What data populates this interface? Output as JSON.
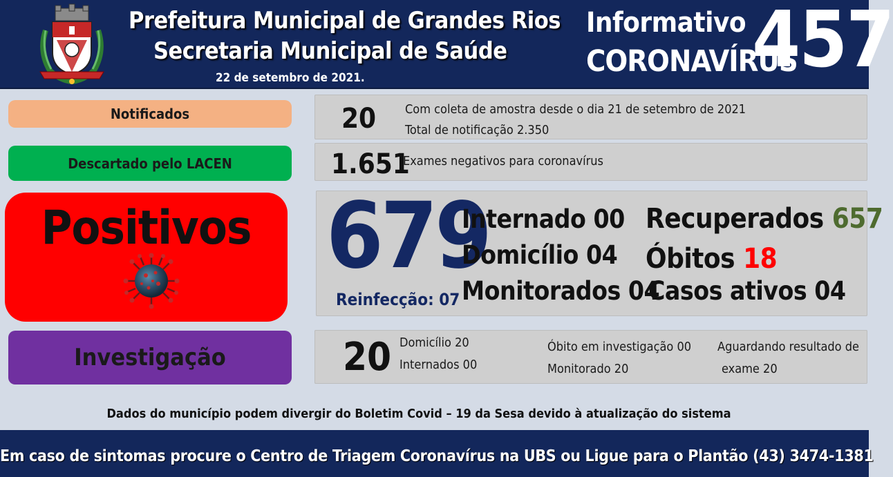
{
  "header": {
    "title_line1": "Prefeitura Municipal de Grandes Rios",
    "title_line2": "Secretaria Municipal de Saúde",
    "date": "22 de setembro  de 2021.",
    "info_label": "Informativo",
    "corona_label": "CORONAVÍRUS",
    "edition_number": "457"
  },
  "notified": {
    "label": "Notificados",
    "count": "20",
    "line1": "Com coleta de amostra desde o dia 21 de setembro de 2021",
    "line2": "Total de notificação  2.350",
    "color": "#f4b183"
  },
  "discarded": {
    "label": "Descartado  pelo LACEN",
    "count": "1.651",
    "line1": "Exames negativos  para coronavírus",
    "color": "#00b050"
  },
  "positive": {
    "label": "Positivos",
    "count": "679",
    "reinfection": "Reinfecção:  07",
    "hospitalized": "Internado 00",
    "home": "Domicílio 04",
    "monitored": "Monitorados 04",
    "recovered_label": "Recuperados ",
    "recovered_value": "657",
    "deaths_label": "Óbitos ",
    "deaths_value": "18",
    "active": "Casos ativos 04",
    "color": "#ff0000",
    "icon": "coronavirus-icon"
  },
  "investigation": {
    "label": "Investigação",
    "count": "20",
    "home": "Domicílio 20",
    "hospitalized": "Internados 00",
    "death": "Óbito  em investigação  00",
    "monitored": "Monitorado  20",
    "awaiting_line1": "Aguardando resultado de",
    "awaiting_line2": "exame 20",
    "color": "#7030a0"
  },
  "disclaimer": "Dados do município  podem  divergir  do Boletim  Covid – 19 da Sesa devido à atualização  do sistema",
  "footer": "Em caso de sintomas  procure  o Centro de Triagem  Coronavírus  na UBS ou Ligue para o Plantão  (43) 3474-1381"
}
